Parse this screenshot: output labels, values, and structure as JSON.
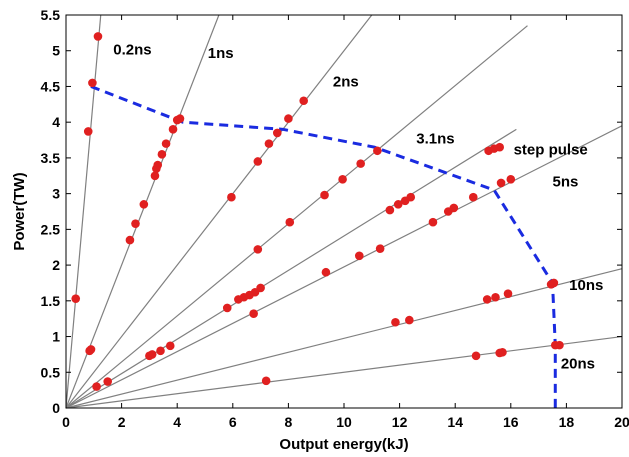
{
  "chart_data": {
    "type": "scatter",
    "xlabel": "Output energy(kJ)",
    "ylabel": "Power(TW)",
    "xlim": [
      0,
      20
    ],
    "ylim": [
      0,
      5.5
    ],
    "x_ticks": [
      0,
      2,
      4,
      6,
      8,
      10,
      12,
      14,
      16,
      18,
      20
    ],
    "y_ticks": [
      0,
      0.5,
      1,
      1.5,
      2,
      2.5,
      3,
      3.5,
      4,
      4.5,
      5,
      5.5
    ],
    "grid": false,
    "colors": {
      "reference_line": "#808080",
      "points": "#e02020",
      "envelope": "#1a2be0"
    },
    "reference_lines": [
      {
        "label": "0.2ns",
        "end": [
          1.25,
          5.5
        ],
        "label_pos": [
          1.7,
          4.95
        ]
      },
      {
        "label": "1ns",
        "end": [
          5.5,
          5.5
        ],
        "label_pos": [
          5.1,
          4.9
        ]
      },
      {
        "label": "2ns",
        "end": [
          11,
          5.5
        ],
        "label_pos": [
          9.6,
          4.5
        ]
      },
      {
        "label": "3.1ns",
        "end": [
          16.6,
          5.35
        ],
        "label_pos": [
          12.6,
          3.7
        ]
      },
      {
        "label": "step pulse",
        "end": [
          16.2,
          3.9
        ],
        "label_pos": [
          16.1,
          3.55
        ]
      },
      {
        "label": "5ns",
        "end": [
          20,
          3.95
        ],
        "label_pos": [
          17.5,
          3.1
        ]
      },
      {
        "label": "10ns",
        "end": [
          20,
          1.95
        ],
        "label_pos": [
          18.1,
          1.65
        ]
      },
      {
        "label": "20ns",
        "end": [
          20,
          1.0
        ],
        "label_pos": [
          17.8,
          0.55
        ]
      }
    ],
    "envelope": [
      [
        0.9,
        4.5
      ],
      [
        4.2,
        4.0
      ],
      [
        7.8,
        3.9
      ],
      [
        11.1,
        3.65
      ],
      [
        15.4,
        3.05
      ],
      [
        17.5,
        1.75
      ],
      [
        17.6,
        0.88
      ],
      [
        17.6,
        0
      ]
    ],
    "points": [
      [
        1.15,
        5.2
      ],
      [
        0.95,
        4.55
      ],
      [
        0.8,
        3.87
      ],
      [
        0.35,
        1.53
      ],
      [
        0.9,
        0.82
      ],
      [
        0.85,
        0.8
      ],
      [
        4.1,
        4.05
      ],
      [
        3.85,
        3.9
      ],
      [
        4.0,
        4.03
      ],
      [
        3.6,
        3.7
      ],
      [
        3.45,
        3.55
      ],
      [
        3.3,
        3.4
      ],
      [
        3.25,
        3.35
      ],
      [
        3.2,
        3.25
      ],
      [
        2.8,
        2.85
      ],
      [
        2.5,
        2.58
      ],
      [
        2.3,
        2.35
      ],
      [
        1.1,
        0.3
      ],
      [
        1.5,
        0.37
      ],
      [
        8.55,
        4.3
      ],
      [
        8.0,
        4.05
      ],
      [
        7.6,
        3.85
      ],
      [
        7.3,
        3.7
      ],
      [
        6.9,
        3.45
      ],
      [
        5.95,
        2.95
      ],
      [
        6.9,
        2.22
      ],
      [
        5.8,
        1.4
      ],
      [
        11.2,
        3.6
      ],
      [
        10.6,
        3.42
      ],
      [
        9.95,
        3.2
      ],
      [
        9.3,
        2.98
      ],
      [
        8.05,
        2.6
      ],
      [
        7.0,
        1.68
      ],
      [
        6.8,
        1.62
      ],
      [
        6.6,
        1.58
      ],
      [
        6.4,
        1.55
      ],
      [
        6.2,
        1.52
      ],
      [
        6.75,
        1.32
      ],
      [
        3.75,
        0.87
      ],
      [
        3.4,
        0.8
      ],
      [
        3.1,
        0.75
      ],
      [
        3.0,
        0.73
      ],
      [
        12.4,
        2.95
      ],
      [
        12.2,
        2.9
      ],
      [
        11.95,
        2.85
      ],
      [
        11.65,
        2.77
      ],
      [
        10.55,
        2.13
      ],
      [
        11.3,
        2.23
      ],
      [
        9.35,
        1.9
      ],
      [
        15.6,
        3.65
      ],
      [
        15.4,
        3.63
      ],
      [
        15.2,
        3.6
      ],
      [
        14.65,
        2.95
      ],
      [
        13.95,
        2.8
      ],
      [
        13.75,
        2.75
      ],
      [
        13.2,
        2.6
      ],
      [
        15.65,
        3.15
      ],
      [
        16.0,
        3.2
      ],
      [
        15.9,
        1.6
      ],
      [
        15.45,
        1.55
      ],
      [
        15.15,
        1.52
      ],
      [
        12.35,
        1.23
      ],
      [
        11.85,
        1.2
      ],
      [
        14.75,
        0.73
      ],
      [
        15.6,
        0.77
      ],
      [
        15.7,
        0.78
      ],
      [
        7.2,
        0.38
      ],
      [
        17.55,
        1.75
      ],
      [
        17.45,
        1.73
      ],
      [
        17.6,
        0.88
      ],
      [
        17.75,
        0.88
      ]
    ]
  }
}
